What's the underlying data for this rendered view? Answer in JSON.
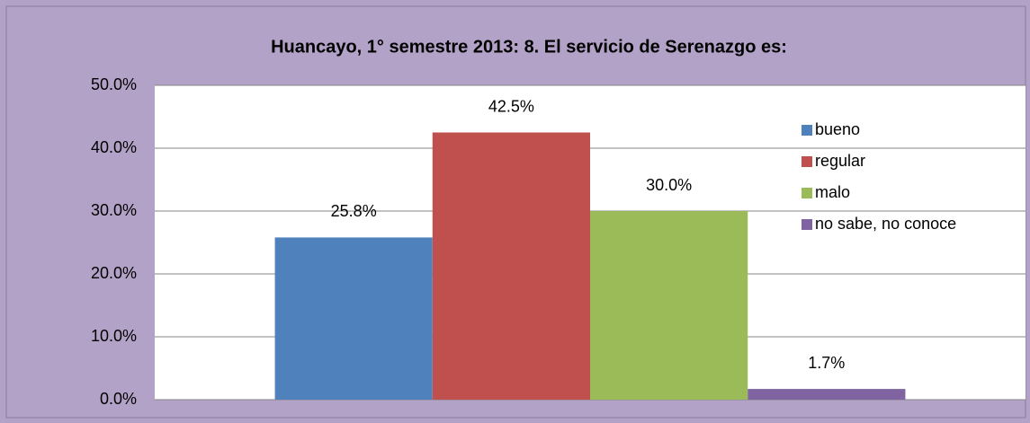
{
  "chart_data": {
    "type": "bar",
    "title": "Huancayo, 1° semestre 2013: 8. El servicio de Serenazgo es:",
    "categories": [
      null
    ],
    "series": [
      {
        "name": "bueno",
        "color": "#4f81bd",
        "values": [
          25.8
        ],
        "value_labels": [
          "25.8%"
        ]
      },
      {
        "name": "regular",
        "color": "#c0504d",
        "values": [
          42.5
        ],
        "value_labels": [
          "42.5%"
        ]
      },
      {
        "name": "malo",
        "color": "#9bbb59",
        "values": [
          30.0
        ],
        "value_labels": [
          "30.0%"
        ]
      },
      {
        "name": "no sabe, no conoce",
        "color": "#8064a2",
        "values": [
          1.7
        ],
        "value_labels": [
          "1.7%"
        ]
      }
    ],
    "ylim": [
      0,
      50
    ],
    "yticks": [
      {
        "value": 0,
        "label": "0.0%"
      },
      {
        "value": 10,
        "label": "10.0%"
      },
      {
        "value": 20,
        "label": "20.0%"
      },
      {
        "value": 30,
        "label": "30.0%"
      },
      {
        "value": 40,
        "label": "40.0%"
      },
      {
        "value": 50,
        "label": "50.0%"
      }
    ],
    "grid": true,
    "legend": "right"
  }
}
